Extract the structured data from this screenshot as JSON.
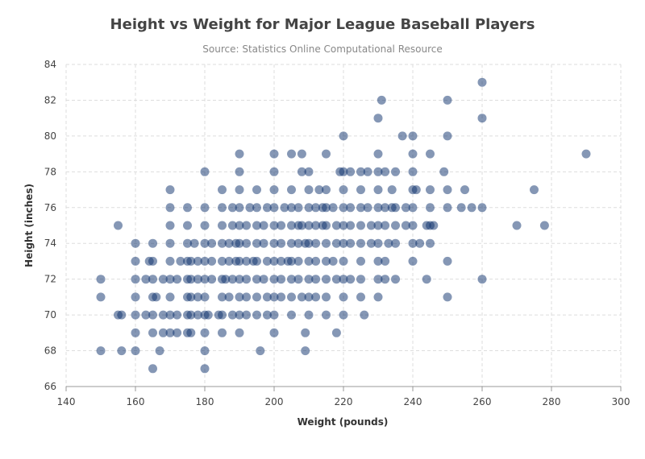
{
  "chart_data": {
    "type": "scatter",
    "title": "Height vs Weight for Major League Baseball Players",
    "subtitle": "Source: Statistics Online Computational Resource",
    "xlabel": "Weight (pounds)",
    "ylabel": "Height (inches)",
    "xlim": [
      140,
      300
    ],
    "ylim": [
      66,
      84
    ],
    "x_ticks": [
      140,
      160,
      180,
      200,
      220,
      240,
      260,
      280,
      300
    ],
    "y_ticks": [
      66,
      68,
      70,
      72,
      74,
      76,
      78,
      80,
      82,
      84
    ],
    "grid": true,
    "point_color": "#0b2f6b",
    "series": [
      {
        "points": [
          [
            150,
            68
          ],
          [
            156,
            68
          ],
          [
            160,
            68
          ],
          [
            167,
            68
          ],
          [
            180,
            68
          ],
          [
            196,
            68
          ],
          [
            209,
            68
          ],
          [
            165,
            67
          ],
          [
            180,
            67
          ],
          [
            160,
            69
          ],
          [
            165,
            69
          ],
          [
            168,
            69
          ],
          [
            170,
            69
          ],
          [
            172,
            69
          ],
          [
            175,
            69
          ],
          [
            176,
            69
          ],
          [
            180,
            69
          ],
          [
            185,
            69
          ],
          [
            190,
            69
          ],
          [
            200,
            69
          ],
          [
            209,
            69
          ],
          [
            218,
            69
          ],
          [
            155,
            70
          ],
          [
            156,
            70
          ],
          [
            160,
            70
          ],
          [
            163,
            70
          ],
          [
            165,
            70
          ],
          [
            168,
            70
          ],
          [
            170,
            70
          ],
          [
            172,
            70
          ],
          [
            175,
            70
          ],
          [
            176,
            70
          ],
          [
            178,
            70
          ],
          [
            180,
            70
          ],
          [
            181,
            70
          ],
          [
            184,
            70
          ],
          [
            185,
            70
          ],
          [
            188,
            70
          ],
          [
            190,
            70
          ],
          [
            192,
            70
          ],
          [
            195,
            70
          ],
          [
            198,
            70
          ],
          [
            200,
            70
          ],
          [
            205,
            70
          ],
          [
            210,
            70
          ],
          [
            215,
            70
          ],
          [
            220,
            70
          ],
          [
            226,
            70
          ],
          [
            150,
            71
          ],
          [
            160,
            71
          ],
          [
            165,
            71
          ],
          [
            166,
            71
          ],
          [
            170,
            71
          ],
          [
            175,
            71
          ],
          [
            176,
            71
          ],
          [
            178,
            71
          ],
          [
            180,
            71
          ],
          [
            185,
            71
          ],
          [
            187,
            71
          ],
          [
            190,
            71
          ],
          [
            192,
            71
          ],
          [
            195,
            71
          ],
          [
            198,
            71
          ],
          [
            200,
            71
          ],
          [
            202,
            71
          ],
          [
            205,
            71
          ],
          [
            208,
            71
          ],
          [
            210,
            71
          ],
          [
            212,
            71
          ],
          [
            215,
            71
          ],
          [
            220,
            71
          ],
          [
            225,
            71
          ],
          [
            230,
            71
          ],
          [
            250,
            71
          ],
          [
            150,
            72
          ],
          [
            160,
            72
          ],
          [
            163,
            72
          ],
          [
            165,
            72
          ],
          [
            168,
            72
          ],
          [
            170,
            72
          ],
          [
            172,
            72
          ],
          [
            175,
            72
          ],
          [
            176,
            72
          ],
          [
            178,
            72
          ],
          [
            180,
            72
          ],
          [
            182,
            72
          ],
          [
            185,
            72
          ],
          [
            186,
            72
          ],
          [
            188,
            72
          ],
          [
            190,
            72
          ],
          [
            192,
            72
          ],
          [
            195,
            72
          ],
          [
            197,
            72
          ],
          [
            200,
            72
          ],
          [
            202,
            72
          ],
          [
            205,
            72
          ],
          [
            207,
            72
          ],
          [
            210,
            72
          ],
          [
            212,
            72
          ],
          [
            215,
            72
          ],
          [
            218,
            72
          ],
          [
            220,
            72
          ],
          [
            222,
            72
          ],
          [
            225,
            72
          ],
          [
            230,
            72
          ],
          [
            232,
            72
          ],
          [
            235,
            72
          ],
          [
            244,
            72
          ],
          [
            260,
            72
          ],
          [
            160,
            73
          ],
          [
            164,
            73
          ],
          [
            165,
            73
          ],
          [
            170,
            73
          ],
          [
            173,
            73
          ],
          [
            175,
            73
          ],
          [
            176,
            73
          ],
          [
            178,
            73
          ],
          [
            180,
            73
          ],
          [
            182,
            73
          ],
          [
            185,
            73
          ],
          [
            187,
            73
          ],
          [
            189,
            73
          ],
          [
            190,
            73
          ],
          [
            192,
            73
          ],
          [
            194,
            73
          ],
          [
            195,
            73
          ],
          [
            198,
            73
          ],
          [
            200,
            73
          ],
          [
            202,
            73
          ],
          [
            204,
            73
          ],
          [
            205,
            73
          ],
          [
            207,
            73
          ],
          [
            210,
            73
          ],
          [
            212,
            73
          ],
          [
            215,
            73
          ],
          [
            217,
            73
          ],
          [
            220,
            73
          ],
          [
            225,
            73
          ],
          [
            230,
            73
          ],
          [
            232,
            73
          ],
          [
            240,
            73
          ],
          [
            250,
            73
          ],
          [
            160,
            74
          ],
          [
            165,
            74
          ],
          [
            170,
            74
          ],
          [
            175,
            74
          ],
          [
            177,
            74
          ],
          [
            180,
            74
          ],
          [
            182,
            74
          ],
          [
            185,
            74
          ],
          [
            187,
            74
          ],
          [
            189,
            74
          ],
          [
            190,
            74
          ],
          [
            192,
            74
          ],
          [
            195,
            74
          ],
          [
            197,
            74
          ],
          [
            200,
            74
          ],
          [
            202,
            74
          ],
          [
            205,
            74
          ],
          [
            207,
            74
          ],
          [
            209,
            74
          ],
          [
            210,
            74
          ],
          [
            212,
            74
          ],
          [
            215,
            74
          ],
          [
            218,
            74
          ],
          [
            220,
            74
          ],
          [
            222,
            74
          ],
          [
            225,
            74
          ],
          [
            228,
            74
          ],
          [
            230,
            74
          ],
          [
            233,
            74
          ],
          [
            235,
            74
          ],
          [
            240,
            74
          ],
          [
            242,
            74
          ],
          [
            245,
            74
          ],
          [
            155,
            75
          ],
          [
            170,
            75
          ],
          [
            175,
            75
          ],
          [
            180,
            75
          ],
          [
            185,
            75
          ],
          [
            188,
            75
          ],
          [
            190,
            75
          ],
          [
            192,
            75
          ],
          [
            195,
            75
          ],
          [
            197,
            75
          ],
          [
            200,
            75
          ],
          [
            202,
            75
          ],
          [
            205,
            75
          ],
          [
            207,
            75
          ],
          [
            208,
            75
          ],
          [
            210,
            75
          ],
          [
            212,
            75
          ],
          [
            214,
            75
          ],
          [
            215,
            75
          ],
          [
            218,
            75
          ],
          [
            220,
            75
          ],
          [
            222,
            75
          ],
          [
            225,
            75
          ],
          [
            228,
            75
          ],
          [
            230,
            75
          ],
          [
            232,
            75
          ],
          [
            235,
            75
          ],
          [
            238,
            75
          ],
          [
            240,
            75
          ],
          [
            244,
            75
          ],
          [
            245,
            75
          ],
          [
            246,
            75
          ],
          [
            270,
            75
          ],
          [
            278,
            75
          ],
          [
            170,
            76
          ],
          [
            175,
            76
          ],
          [
            180,
            76
          ],
          [
            185,
            76
          ],
          [
            188,
            76
          ],
          [
            190,
            76
          ],
          [
            193,
            76
          ],
          [
            195,
            76
          ],
          [
            198,
            76
          ],
          [
            200,
            76
          ],
          [
            203,
            76
          ],
          [
            205,
            76
          ],
          [
            207,
            76
          ],
          [
            210,
            76
          ],
          [
            212,
            76
          ],
          [
            214,
            76
          ],
          [
            215,
            76
          ],
          [
            217,
            76
          ],
          [
            220,
            76
          ],
          [
            222,
            76
          ],
          [
            225,
            76
          ],
          [
            227,
            76
          ],
          [
            230,
            76
          ],
          [
            232,
            76
          ],
          [
            234,
            76
          ],
          [
            235,
            76
          ],
          [
            238,
            76
          ],
          [
            240,
            76
          ],
          [
            245,
            76
          ],
          [
            250,
            76
          ],
          [
            254,
            76
          ],
          [
            257,
            76
          ],
          [
            260,
            76
          ],
          [
            170,
            77
          ],
          [
            185,
            77
          ],
          [
            190,
            77
          ],
          [
            195,
            77
          ],
          [
            200,
            77
          ],
          [
            205,
            77
          ],
          [
            210,
            77
          ],
          [
            213,
            77
          ],
          [
            215,
            77
          ],
          [
            220,
            77
          ],
          [
            225,
            77
          ],
          [
            230,
            77
          ],
          [
            234,
            77
          ],
          [
            240,
            77
          ],
          [
            241,
            77
          ],
          [
            245,
            77
          ],
          [
            250,
            77
          ],
          [
            255,
            77
          ],
          [
            275,
            77
          ],
          [
            180,
            78
          ],
          [
            190,
            78
          ],
          [
            200,
            78
          ],
          [
            208,
            78
          ],
          [
            210,
            78
          ],
          [
            219,
            78
          ],
          [
            220,
            78
          ],
          [
            222,
            78
          ],
          [
            225,
            78
          ],
          [
            227,
            78
          ],
          [
            230,
            78
          ],
          [
            232,
            78
          ],
          [
            235,
            78
          ],
          [
            240,
            78
          ],
          [
            249,
            78
          ],
          [
            190,
            79
          ],
          [
            200,
            79
          ],
          [
            205,
            79
          ],
          [
            208,
            79
          ],
          [
            215,
            79
          ],
          [
            230,
            79
          ],
          [
            240,
            79
          ],
          [
            245,
            79
          ],
          [
            290,
            79
          ],
          [
            220,
            80
          ],
          [
            237,
            80
          ],
          [
            240,
            80
          ],
          [
            250,
            80
          ],
          [
            230,
            81
          ],
          [
            260,
            81
          ],
          [
            231,
            82
          ],
          [
            250,
            82
          ],
          [
            260,
            83
          ]
        ]
      }
    ]
  }
}
